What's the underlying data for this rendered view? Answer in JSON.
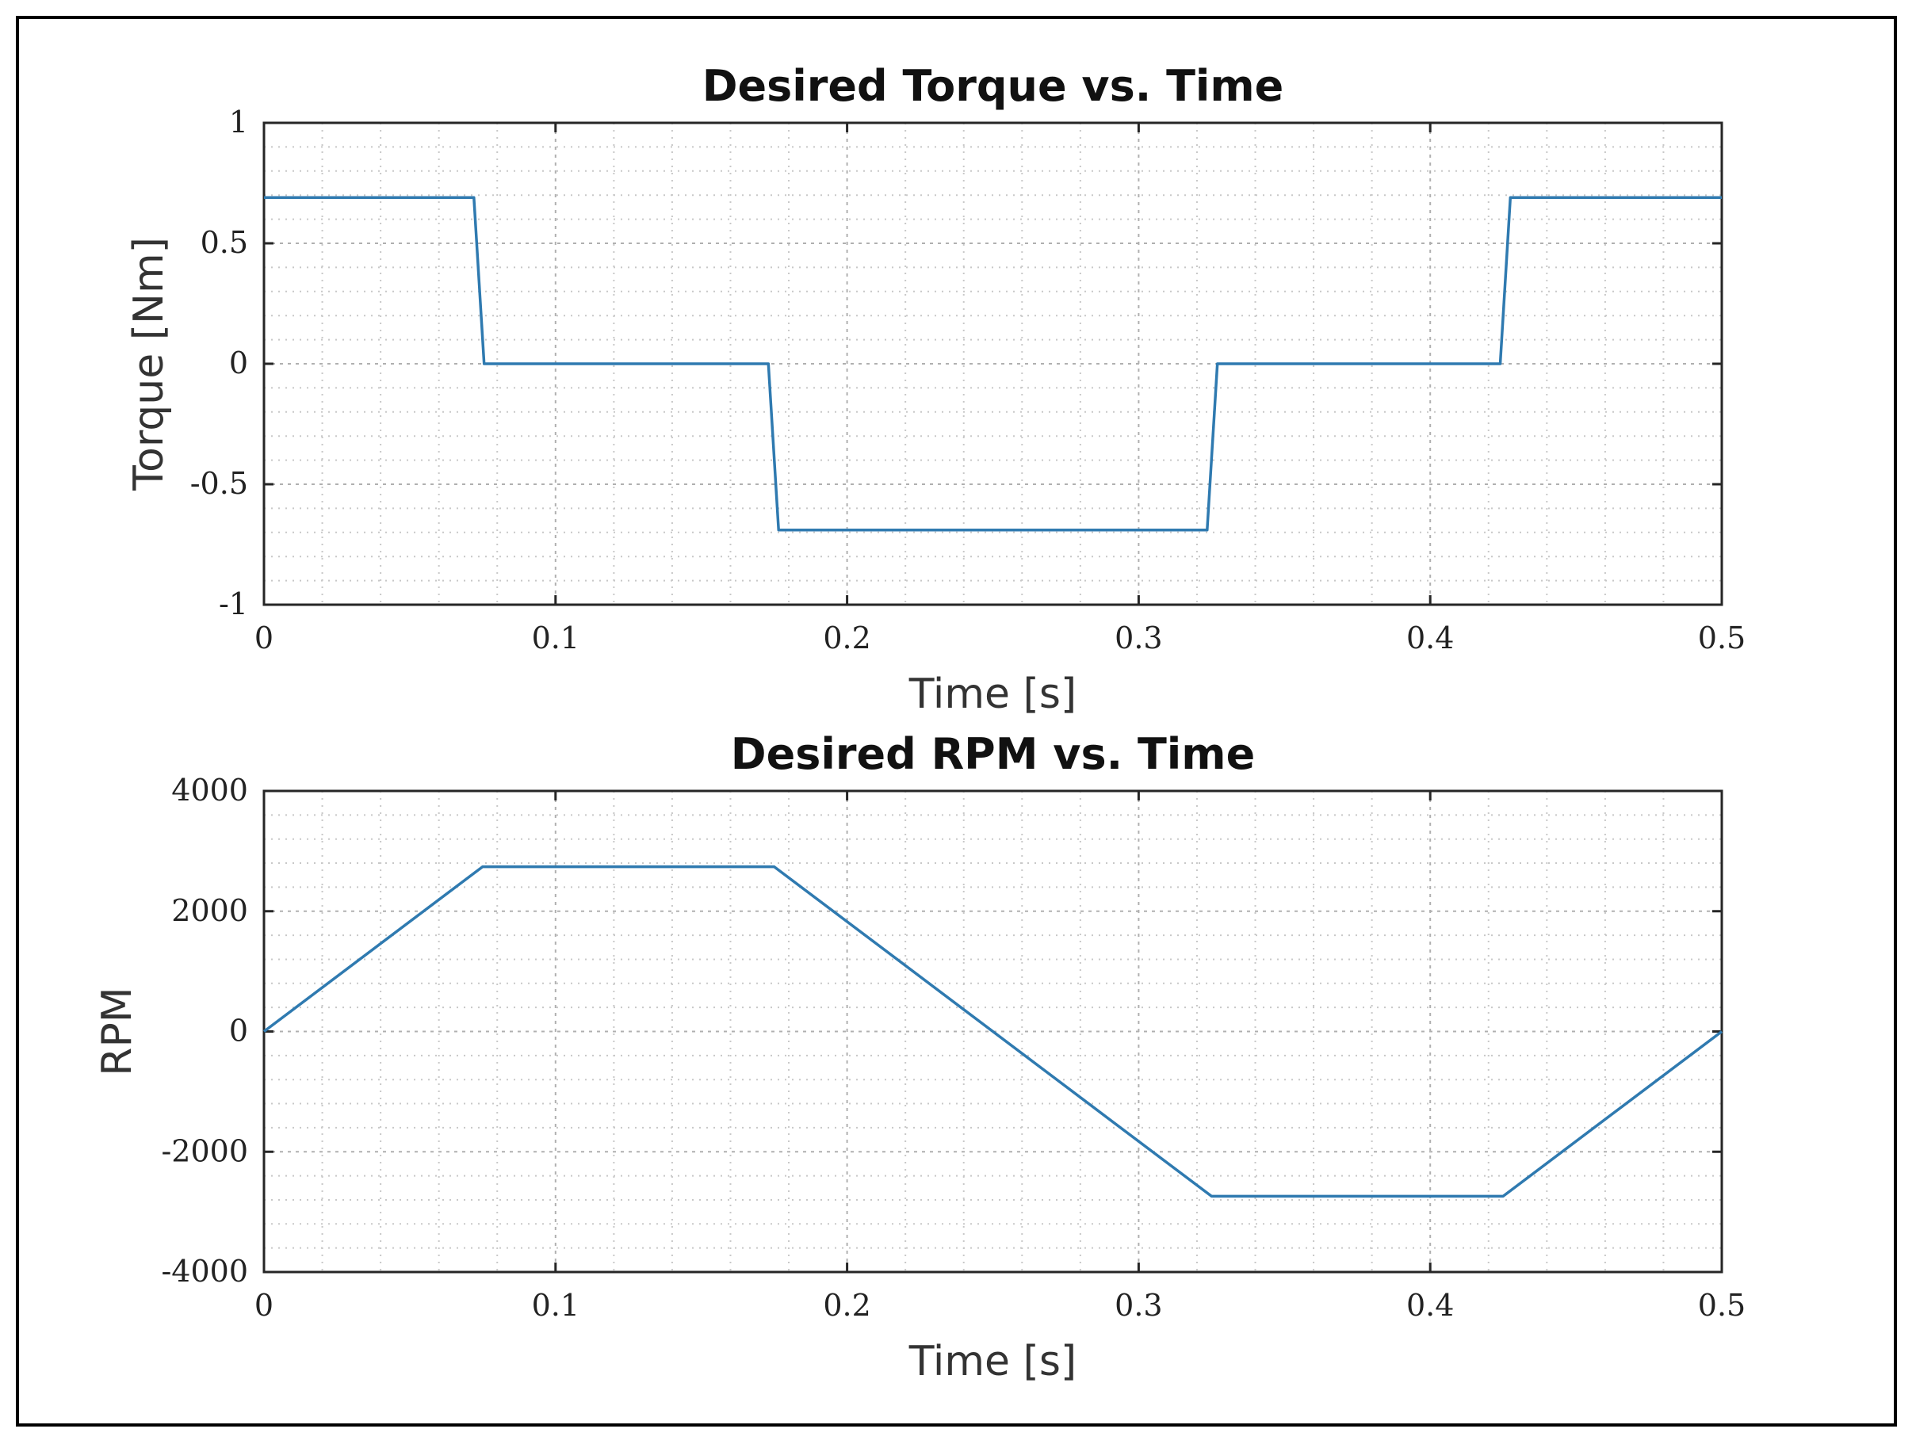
{
  "chart_data": [
    {
      "type": "line",
      "title": "Desired Torque vs. Time",
      "xlabel": "Time [s]",
      "ylabel": "Torque [Nm]",
      "xlim": [
        0,
        0.5
      ],
      "ylim": [
        -1,
        1
      ],
      "xticks": [
        "0",
        "0.1",
        "0.2",
        "0.3",
        "0.4",
        "0.5"
      ],
      "yticks": [
        "-1",
        "-0.5",
        "0",
        "0.5",
        "1"
      ],
      "grid": true,
      "series": [
        {
          "color": "#2f7ab0",
          "x": [
            0,
            0.072,
            0.0755,
            0.173,
            0.1765,
            0.3235,
            0.327,
            0.424,
            0.4275,
            0.5
          ],
          "y": [
            0.69,
            0.69,
            0,
            0,
            -0.69,
            -0.69,
            0,
            0,
            0.69,
            0.69
          ]
        }
      ]
    },
    {
      "type": "line",
      "title": "Desired RPM vs. Time",
      "xlabel": "Time [s]",
      "ylabel": "RPM",
      "xlim": [
        0,
        0.5
      ],
      "ylim": [
        -4000,
        4000
      ],
      "xticks": [
        "0",
        "0.1",
        "0.2",
        "0.3",
        "0.4",
        "0.5"
      ],
      "yticks": [
        "-4000",
        "-2000",
        "0",
        "2000",
        "4000"
      ],
      "grid": true,
      "series": [
        {
          "color": "#2f7ab0",
          "x": [
            0,
            0.075,
            0.175,
            0.325,
            0.425,
            0.5
          ],
          "y": [
            0,
            2740,
            2740,
            -2740,
            -2740,
            0
          ]
        }
      ]
    }
  ]
}
